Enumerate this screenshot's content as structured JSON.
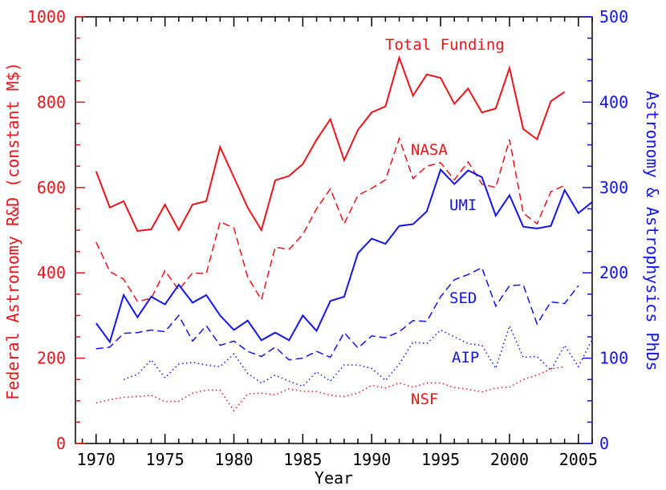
{
  "chart_data": {
    "type": "line",
    "xlabel": "Year",
    "ylabel_left": "Federal Astronomy R&D (constant M$)",
    "ylabel_right": "Astronomy & Astrophysics PhDs",
    "xlim": [
      1968.5,
      2006
    ],
    "ylim_left": [
      0,
      1000
    ],
    "ylim_right": [
      0,
      500
    ],
    "x_ticks": [
      1970,
      1975,
      1980,
      1985,
      1990,
      1995,
      2000,
      2005
    ],
    "y_ticks_left": [
      0,
      200,
      400,
      600,
      800,
      1000
    ],
    "y_ticks_right": [
      0,
      100,
      200,
      300,
      400,
      500
    ],
    "colors": {
      "left_axis": "#e8151b",
      "right_axis": "#1414e6",
      "frame": "#000000"
    },
    "series": [
      {
        "name": "Total Funding",
        "axis": "left",
        "color": "#e8151b",
        "style": "solid",
        "x": [
          1970,
          1971,
          1972,
          1973,
          1974,
          1975,
          1976,
          1977,
          1978,
          1979,
          1980,
          1981,
          1982,
          1983,
          1984,
          1985,
          1986,
          1987,
          1988,
          1989,
          1990,
          1991,
          1992,
          1993,
          1994,
          1995,
          1996,
          1997,
          1998,
          1999,
          2000,
          2001,
          2002,
          2003,
          2004
        ],
        "values": [
          638,
          553,
          568,
          498,
          502,
          560,
          500,
          560,
          568,
          695,
          624,
          553,
          500,
          617,
          627,
          655,
          712,
          760,
          664,
          735,
          776,
          790,
          904,
          815,
          865,
          857,
          796,
          832,
          776,
          785,
          880,
          737,
          713,
          802,
          824
        ]
      },
      {
        "name": "NASA",
        "axis": "left",
        "color": "#e8151b",
        "style": "dashed",
        "x": [
          1970,
          1971,
          1972,
          1973,
          1974,
          1975,
          1976,
          1977,
          1978,
          1979,
          1980,
          1981,
          1982,
          1983,
          1984,
          1985,
          1986,
          1987,
          1988,
          1989,
          1990,
          1991,
          1992,
          1993,
          1994,
          1995,
          1996,
          1997,
          1998,
          1999,
          2000,
          2001,
          2002,
          2003,
          2004
        ],
        "values": [
          472,
          403,
          385,
          333,
          340,
          405,
          360,
          400,
          398,
          520,
          505,
          390,
          337,
          460,
          455,
          490,
          550,
          597,
          515,
          582,
          598,
          618,
          715,
          621,
          650,
          658,
          618,
          660,
          608,
          600,
          712,
          540,
          515,
          590,
          605
        ]
      },
      {
        "name": "NSF",
        "axis": "left",
        "color": "#e8151b",
        "style": "dotted",
        "x": [
          1970,
          1971,
          1972,
          1973,
          1974,
          1975,
          1976,
          1977,
          1978,
          1979,
          1980,
          1981,
          1982,
          1983,
          1984,
          1985,
          1986,
          1987,
          1988,
          1989,
          1990,
          1991,
          1992,
          1993,
          1994,
          1995,
          1996,
          1997,
          1998,
          1999,
          2000,
          2001,
          2002,
          2003,
          2004
        ],
        "values": [
          95,
          103,
          108,
          110,
          113,
          98,
          99,
          118,
          125,
          125,
          77,
          116,
          118,
          114,
          128,
          122,
          122,
          113,
          110,
          118,
          136,
          130,
          142,
          132,
          142,
          142,
          131,
          127,
          121,
          130,
          132,
          150,
          160,
          175,
          180
        ]
      },
      {
        "name": "UMI",
        "axis": "right",
        "color": "#1414e6",
        "style": "solid",
        "x": [
          1970,
          1971,
          1972,
          1973,
          1974,
          1975,
          1976,
          1977,
          1978,
          1979,
          1980,
          1981,
          1982,
          1983,
          1984,
          1985,
          1986,
          1987,
          1988,
          1989,
          1990,
          1991,
          1992,
          1993,
          1994,
          1995,
          1996,
          1997,
          1998,
          1999,
          2000,
          2001,
          2002,
          2003,
          2004,
          2005,
          2006
        ],
        "values": [
          141,
          119,
          174,
          148,
          172,
          163,
          186,
          165,
          174,
          150,
          133,
          144,
          121,
          130,
          121,
          150,
          132,
          167,
          172,
          223,
          240,
          234,
          255,
          257,
          272,
          321,
          304,
          320,
          312,
          267,
          291,
          254,
          252,
          255,
          297,
          270,
          283
        ]
      },
      {
        "name": "SED",
        "axis": "right",
        "color": "#1414e6",
        "style": "dashed",
        "x": [
          1970,
          1971,
          1972,
          1973,
          1974,
          1975,
          1976,
          1977,
          1978,
          1979,
          1980,
          1981,
          1982,
          1983,
          1984,
          1985,
          1986,
          1987,
          1988,
          1989,
          1990,
          1991,
          1992,
          1993,
          1994,
          1995,
          1996,
          1997,
          1998,
          1999,
          2000,
          2001,
          2002,
          2003,
          2004,
          2005
        ],
        "values": [
          111,
          113,
          129,
          130,
          133,
          131,
          150,
          120,
          138,
          115,
          120,
          108,
          102,
          113,
          98,
          100,
          108,
          101,
          130,
          112,
          126,
          124,
          131,
          144,
          143,
          172,
          192,
          198,
          206,
          161,
          185,
          186,
          140,
          166,
          164,
          185
        ]
      },
      {
        "name": "AIP",
        "axis": "right",
        "color": "#1414e6",
        "style": "dotted",
        "x": [
          1972,
          1973,
          1974,
          1975,
          1976,
          1977,
          1978,
          1979,
          1980,
          1981,
          1982,
          1983,
          1984,
          1985,
          1986,
          1987,
          1988,
          1989,
          1990,
          1991,
          1992,
          1993,
          1994,
          1995,
          1996,
          1997,
          1998,
          1999,
          2000,
          2001,
          2002,
          2003,
          2004,
          2005,
          2006
        ],
        "values": [
          75,
          81,
          98,
          77,
          93,
          95,
          92,
          90,
          105,
          82,
          71,
          80,
          73,
          67,
          84,
          73,
          92,
          92,
          88,
          74,
          93,
          119,
          117,
          133,
          125,
          117,
          115,
          88,
          138,
          101,
          102,
          86,
          115,
          90,
          122
        ]
      }
    ],
    "series_labels": [
      "Total Funding",
      "NASA",
      "UMI",
      "SED",
      "AIP",
      "NSF"
    ]
  }
}
